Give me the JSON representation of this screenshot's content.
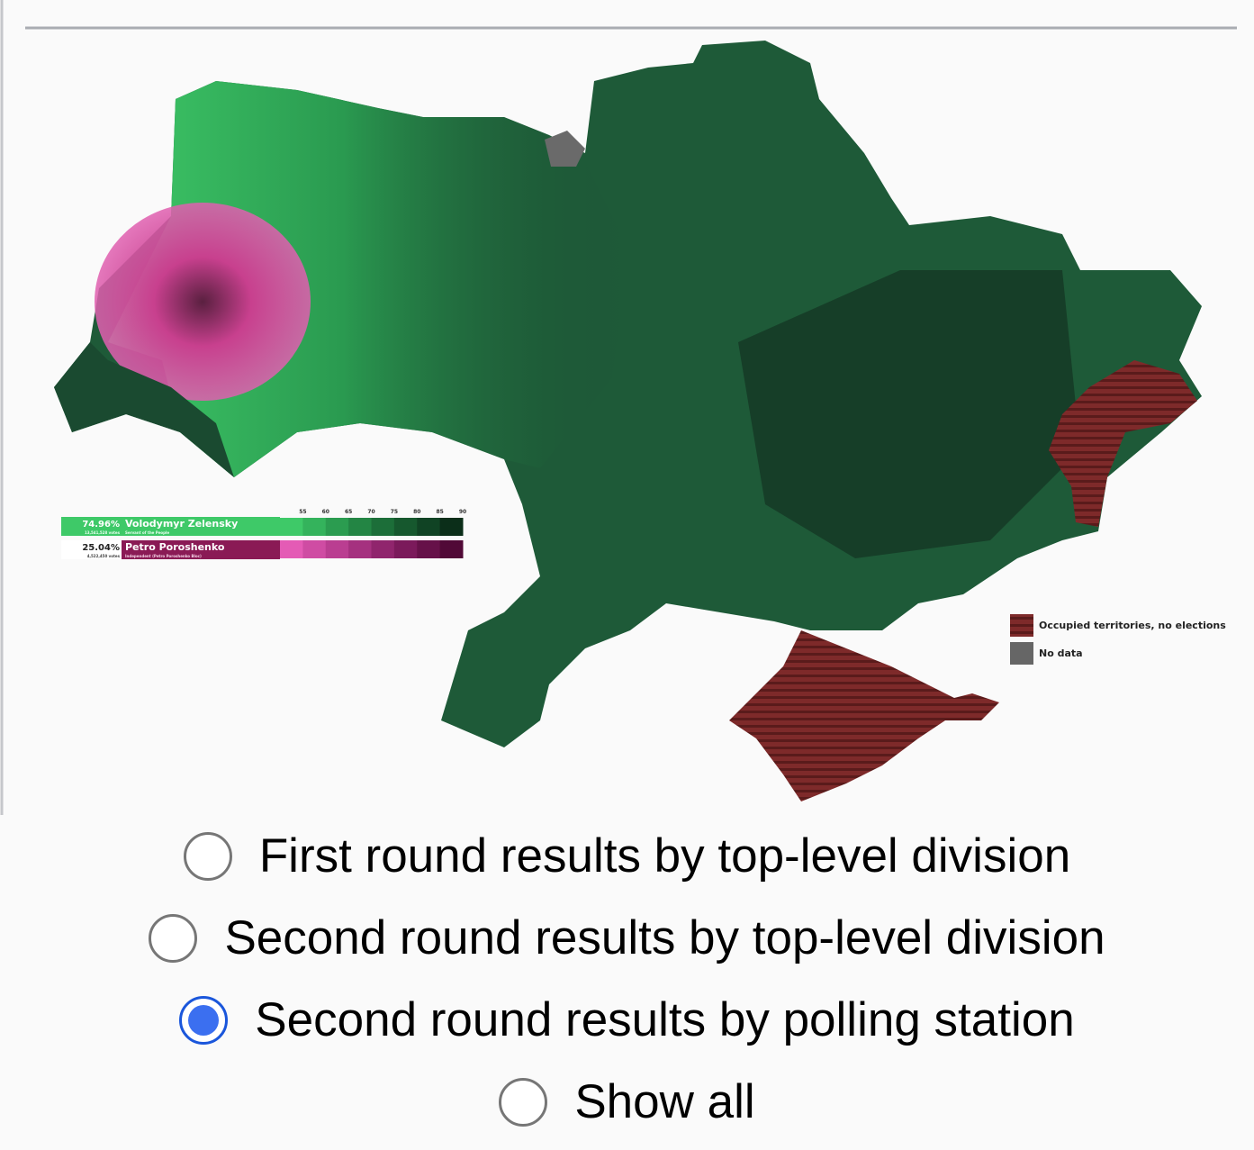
{
  "map": {
    "legend": {
      "candidates": [
        {
          "percent": "74.96%",
          "name": "Volodymyr Zelensky",
          "votes": "13,541,528 votes",
          "party": "Servant of the People"
        },
        {
          "percent": "25.04%",
          "name": "Petro Poroshenko",
          "votes": "4,522,450 votes",
          "party": "Independent (Petro Poroshenko Bloc)"
        }
      ],
      "scale_ticks": [
        55,
        60,
        65,
        70,
        75,
        80,
        85,
        90
      ],
      "occupied": "Occupied territories, no elections",
      "no_data": "No data"
    }
  },
  "options": {
    "items": [
      "First round results by top-level division",
      "Second round results by top-level division",
      "Second round results by polling station",
      "Show all"
    ],
    "selected": 2
  }
}
